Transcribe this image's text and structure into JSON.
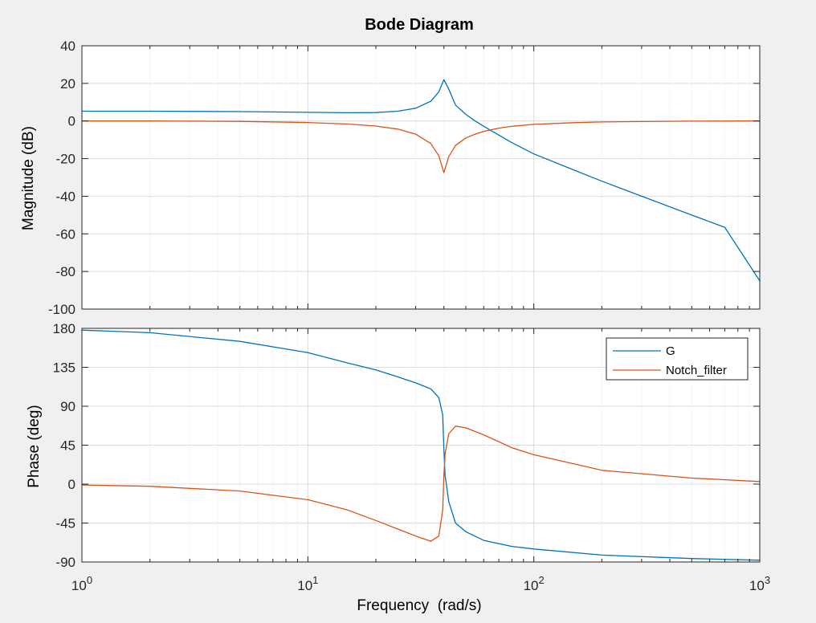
{
  "chart_data": [
    {
      "type": "line",
      "panel": "magnitude",
      "title": "Bode Diagram",
      "xlabel": "",
      "ylabel": "Magnitude (dB)",
      "xscale": "log",
      "xlim": [
        1,
        1000
      ],
      "ylim": [
        -100,
        40
      ],
      "yticks": [
        "40",
        "20",
        "0",
        "-20",
        "-40",
        "-60",
        "-80",
        "-100"
      ],
      "grid": true,
      "series": [
        {
          "name": "G",
          "color": "#0072BD",
          "x": [
            1,
            2,
            5,
            10,
            15,
            20,
            25,
            30,
            35,
            38,
            40,
            42,
            45,
            50,
            55,
            60,
            70,
            80,
            100,
            150,
            200,
            300,
            500,
            700,
            1000
          ],
          "y": [
            5.2,
            5.2,
            5,
            4.6,
            4.4,
            4.5,
            5.2,
            6.8,
            10.5,
            15.5,
            22,
            17,
            8.5,
            3.5,
            0,
            -2.8,
            -7.5,
            -11.5,
            -17.5,
            -26,
            -32,
            -40,
            -50,
            -56.5,
            -85
          ]
        },
        {
          "name": "Notch_filter",
          "color": "#D95319",
          "x": [
            1,
            2,
            5,
            10,
            15,
            20,
            25,
            30,
            35,
            38,
            40,
            42,
            45,
            50,
            55,
            60,
            70,
            80,
            100,
            150,
            200,
            300,
            500,
            700,
            1000
          ],
          "y": [
            0,
            0,
            -0.2,
            -0.8,
            -1.6,
            -2.7,
            -4.3,
            -7,
            -12,
            -18.5,
            -27.5,
            -19,
            -13,
            -9,
            -7,
            -5.5,
            -3.8,
            -2.8,
            -1.8,
            -0.9,
            -0.5,
            -0.3,
            -0.1,
            -0.05,
            0
          ]
        }
      ]
    },
    {
      "type": "line",
      "panel": "phase",
      "xlabel": "Frequency  (rad/s)",
      "ylabel": "Phase (deg)",
      "xscale": "log",
      "xlim": [
        1,
        1000
      ],
      "ylim": [
        -90,
        180
      ],
      "yticks": [
        "180",
        "135",
        "90",
        "45",
        "0",
        "-45",
        "-90"
      ],
      "xticks": [
        {
          "base": "10",
          "exp": "0"
        },
        {
          "base": "10",
          "exp": "1"
        },
        {
          "base": "10",
          "exp": "2"
        },
        {
          "base": "10",
          "exp": "3"
        }
      ],
      "grid": true,
      "legend_position": "top-right",
      "series": [
        {
          "name": "G",
          "color": "#0072BD",
          "x": [
            1,
            2,
            5,
            10,
            15,
            20,
            25,
            30,
            35,
            38,
            39.5,
            40,
            40.5,
            42,
            45,
            50,
            60,
            80,
            100,
            200,
            500,
            1000
          ],
          "y": [
            178,
            175,
            165,
            152,
            140,
            132,
            124,
            117,
            110,
            100,
            80,
            40,
            10,
            -20,
            -45,
            -55,
            -65,
            -72,
            -75,
            -82,
            -86,
            -88
          ]
        },
        {
          "name": "Notch_filter",
          "color": "#D95319",
          "x": [
            1,
            2,
            5,
            10,
            15,
            20,
            25,
            30,
            35,
            38,
            39.5,
            40,
            40.5,
            42,
            45,
            50,
            60,
            80,
            100,
            200,
            500,
            1000
          ],
          "y": [
            -1,
            -2.5,
            -8,
            -18,
            -30,
            -42,
            -52,
            -60,
            -66,
            -60,
            -30,
            10,
            35,
            58,
            67,
            65,
            57,
            42,
            34,
            16,
            7,
            3
          ]
        }
      ]
    }
  ]
}
